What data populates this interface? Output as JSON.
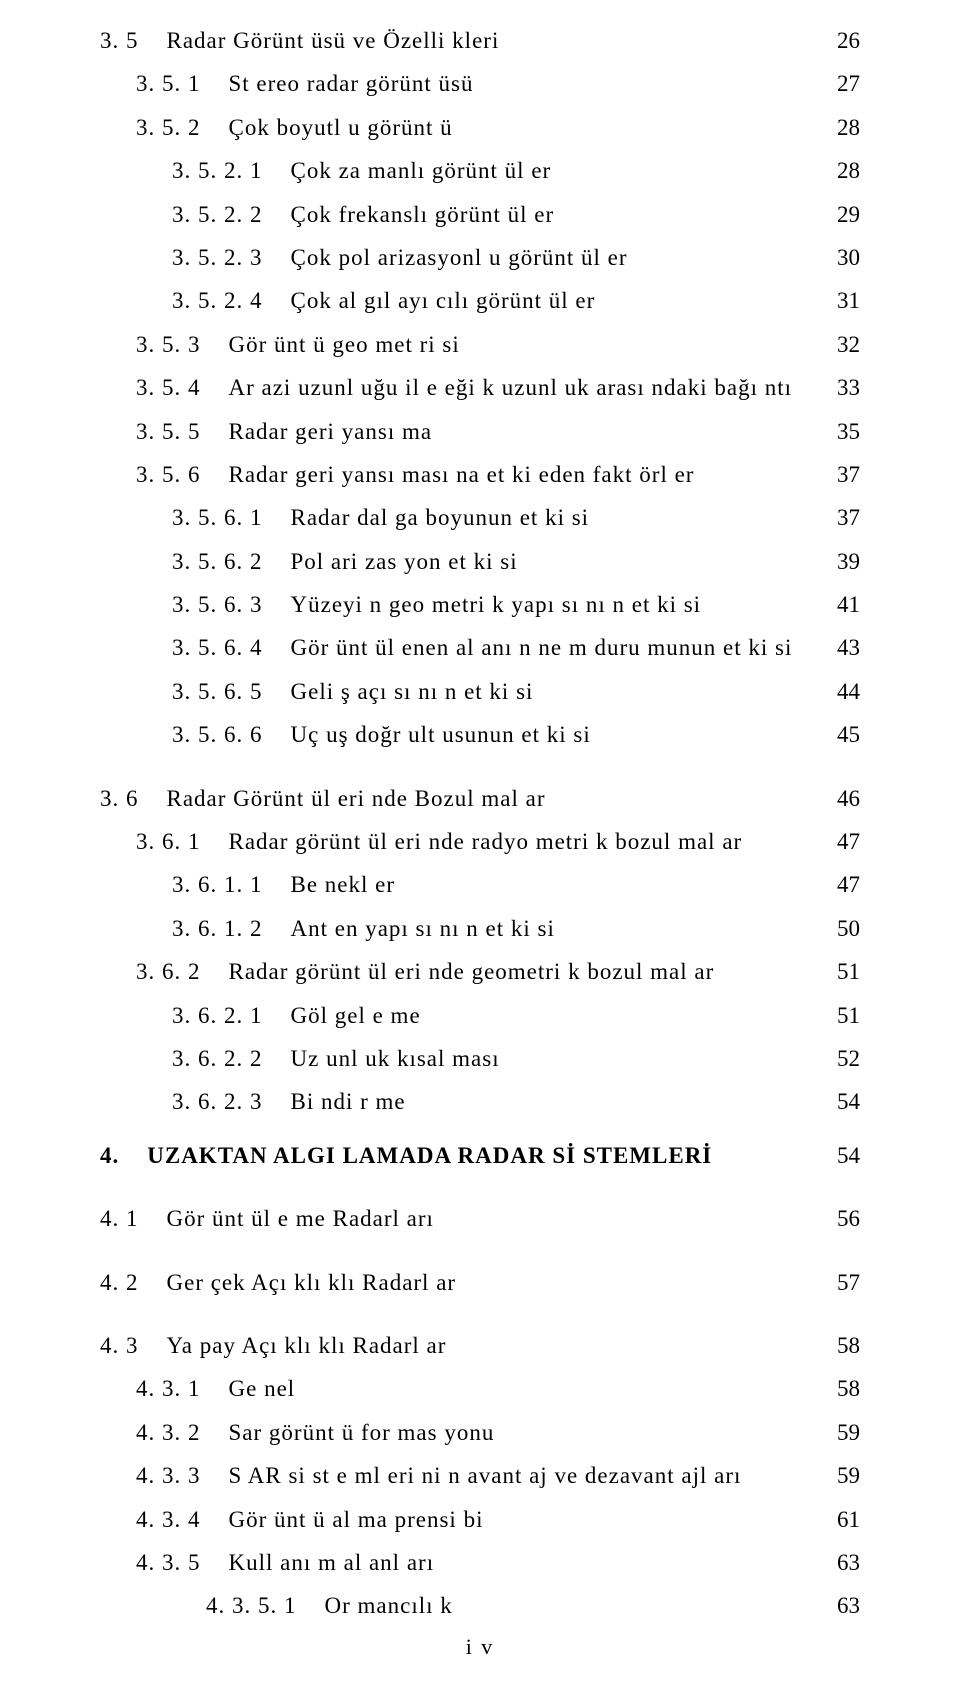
{
  "pageNumber": "i v",
  "entries": [
    {
      "level": 2,
      "num": "3. 5",
      "title": "Radar Görünt üsü ve Özelli kleri",
      "pg": "26"
    },
    {
      "level": 3,
      "num": "3. 5. 1",
      "title": "St ereo radar görünt üsü",
      "pg": "27"
    },
    {
      "level": 3,
      "num": "3. 5. 2",
      "title": "Çok boyutl u görünt ü",
      "pg": "28"
    },
    {
      "level": 4,
      "num": "3. 5. 2. 1",
      "title": "Çok za manlı görünt ül er",
      "pg": "28"
    },
    {
      "level": 4,
      "num": "3. 5. 2. 2",
      "title": "Çok frekanslı görünt ül er",
      "pg": "29"
    },
    {
      "level": 4,
      "num": "3. 5. 2. 3",
      "title": "Çok pol arizasyonl u görünt ül er",
      "pg": "30"
    },
    {
      "level": 4,
      "num": "3. 5. 2. 4",
      "title": "Çok al gıl ayı cılı görünt ül er",
      "pg": "31"
    },
    {
      "level": 3,
      "num": "3. 5. 3",
      "title": "Gör ünt ü geo met ri si",
      "pg": "32"
    },
    {
      "level": 3,
      "num": "3. 5. 4",
      "title": "Ar azi uzunl uğu il e eği k uzunl uk arası ndaki bağı ntı",
      "pg": "33"
    },
    {
      "level": 3,
      "num": "3. 5. 5",
      "title": "Radar geri yansı ma",
      "pg": "35"
    },
    {
      "level": 3,
      "num": "3. 5. 6",
      "title": "Radar geri yansı ması na et ki eden fakt örl er",
      "pg": "37"
    },
    {
      "level": 4,
      "num": "3. 5. 6. 1",
      "title": "Radar dal ga boyunun et ki si",
      "pg": "37"
    },
    {
      "level": 4,
      "num": "3. 5. 6. 2",
      "title": "Pol ari zas yon et ki si",
      "pg": "39"
    },
    {
      "level": 4,
      "num": "3. 5. 6. 3",
      "title": "Yüzeyi n geo metri k yapı sı nı n et ki si",
      "pg": "41"
    },
    {
      "level": 4,
      "num": "3. 5. 6. 4",
      "title": "Gör ünt ül enen al anı n ne m duru munun et ki si",
      "pg": "43"
    },
    {
      "level": 4,
      "num": "3. 5. 6. 5",
      "title": "Geli ş açı sı nı n et ki si",
      "pg": "44"
    },
    {
      "level": 4,
      "num": "3. 5. 6. 6",
      "title": "Uç uş doğr ult usunun et ki si",
      "pg": "45"
    },
    {
      "gap": true
    },
    {
      "level": 2,
      "num": "3. 6",
      "title": "Radar Görünt ül eri nde Bozul mal ar",
      "pg": "46"
    },
    {
      "level": 3,
      "num": "3. 6. 1",
      "title": "Radar görünt ül eri nde radyo metri k bozul mal ar",
      "pg": "47"
    },
    {
      "level": 4,
      "num": "3. 6. 1. 1",
      "title": "Be nekl er",
      "pg": "47"
    },
    {
      "level": 4,
      "num": "3. 6. 1. 2",
      "title": "Ant en yapı sı nı n et ki si",
      "pg": "50"
    },
    {
      "level": 3,
      "num": "3. 6. 2",
      "title": "Radar görünt ül eri nde geometri k bozul mal ar",
      "pg": "51"
    },
    {
      "level": 4,
      "num": "3. 6. 2. 1",
      "title": "Göl gel e me",
      "pg": "51"
    },
    {
      "level": 4,
      "num": "3. 6. 2. 2",
      "title": "Uz unl uk kısal ması",
      "pg": "52"
    },
    {
      "level": 4,
      "num": "3. 6. 2. 3",
      "title": "Bi ndi r me",
      "pg": "54"
    },
    {
      "gap": "sm"
    },
    {
      "level": 1,
      "num": "4.",
      "title": "UZAKTAN ALGI LAMADA RADAR Sİ STEMLERİ",
      "pg": "54",
      "chapter": true
    },
    {
      "gap": true
    },
    {
      "level": 2,
      "num": "4. 1",
      "title": "Gör ünt ül e me Radarl arı",
      "pg": "56"
    },
    {
      "gap": true
    },
    {
      "level": 2,
      "num": "4. 2",
      "title": "Ger çek Açı klı klı Radarl ar",
      "pg": "57"
    },
    {
      "gap": true
    },
    {
      "level": 2,
      "num": "4. 3",
      "title": "Ya pay Açı klı klı Radarl ar",
      "pg": "58"
    },
    {
      "level": 3,
      "num": "4. 3. 1",
      "title": "Ge nel",
      "pg": "58"
    },
    {
      "level": 3,
      "num": "4. 3. 2",
      "title": "Sar görünt ü for mas yonu",
      "pg": "59"
    },
    {
      "level": 3,
      "num": "4. 3. 3",
      "title": "S AR si st e ml eri ni n avant aj ve dezavant ajl arı",
      "pg": "59"
    },
    {
      "level": 3,
      "num": "4. 3. 4",
      "title": "Gör ünt ü al ma prensi bi",
      "pg": "61"
    },
    {
      "level": 3,
      "num": "4. 3. 5",
      "title": "Kull anı m al anl arı",
      "pg": "63"
    },
    {
      "level": 5,
      "num": "4. 3. 5. 1",
      "title": "Or mancılı k",
      "pg": "63"
    }
  ]
}
